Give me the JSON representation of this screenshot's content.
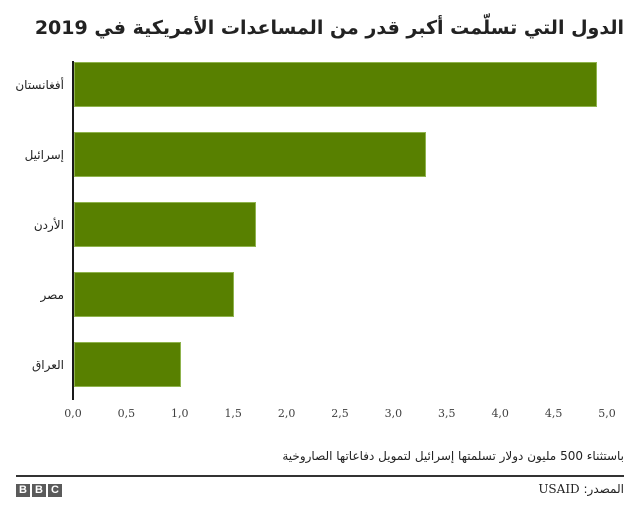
{
  "title": "الدول التي تسلّمت أكبر قدر من المساعدات الأمريكية في 2019",
  "note": "باستثناء 500 مليون دولار تسلمتها إسرائيل لتمويل دفاعاتها الصاروخية",
  "source": {
    "label": "المصدر:",
    "value": "USAID"
  },
  "logo": {
    "letters": [
      "B",
      "B",
      "C"
    ]
  },
  "colors": {
    "bar": "#588000",
    "bar_border": "#8fb34d",
    "axis": "#1a1a1a",
    "text": "#222222"
  },
  "chart_data": {
    "type": "bar",
    "orientation": "horizontal",
    "title": "الدول التي تسلّمت أكبر قدر من المساعدات الأمريكية في 2019",
    "categories": [
      "أفغانستان",
      "إسرائيل",
      "الأردن",
      "مصر",
      "العراق"
    ],
    "values": [
      4.9,
      3.3,
      1.7,
      1.5,
      1.0
    ],
    "xlabel": "",
    "ylabel": "",
    "xlim": [
      0,
      5.0
    ],
    "x_ticks": [
      "0,0",
      "0,5",
      "1,0",
      "1,5",
      "2,0",
      "2,5",
      "3,0",
      "3,5",
      "4,0",
      "4,5",
      "5,0"
    ],
    "x_tick_values": [
      0,
      0.5,
      1.0,
      1.5,
      2.0,
      2.5,
      3.0,
      3.5,
      4.0,
      4.5,
      5.0
    ],
    "grid": false,
    "legend": null,
    "annotation": "باستثناء 500 مليون دولار تسلمتها إسرائيل لتمويل دفاعاتها الصاروخية",
    "source": "المصدر: USAID"
  }
}
